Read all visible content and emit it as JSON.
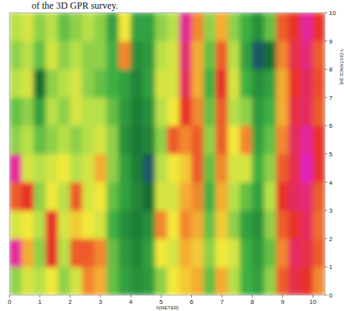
{
  "chart_data": {
    "type": "heatmap",
    "caption": "of the 3D GPR survey.",
    "x_label": "X[METER]",
    "y_label": "Y-DISTANCE [M]",
    "xlim": [
      0,
      10.4
    ],
    "ylim": [
      0,
      10
    ],
    "xticks": [
      0,
      1,
      2,
      3,
      4,
      5,
      6,
      7,
      8,
      9,
      10
    ],
    "yticks": [
      0,
      1,
      2,
      3,
      4,
      5,
      6,
      7,
      8,
      9,
      10
    ],
    "zlim": [
      0,
      100
    ],
    "x": [
      0.2,
      0.6,
      1.0,
      1.4,
      1.8,
      2.2,
      2.6,
      3.0,
      3.4,
      3.8,
      4.2,
      4.6,
      5.0,
      5.4,
      5.8,
      6.2,
      6.6,
      7.0,
      7.4,
      7.8,
      8.2,
      8.6,
      9.0,
      9.4,
      9.8,
      10.2
    ],
    "y": [
      0.5,
      1.5,
      2.5,
      3.5,
      4.5,
      5.5,
      6.5,
      7.5,
      8.5,
      9.5
    ],
    "values": [
      [
        45,
        55,
        50,
        60,
        45,
        55,
        75,
        70,
        40,
        30,
        25,
        28,
        45,
        60,
        65,
        70,
        40,
        70,
        50,
        35,
        30,
        45,
        80,
        88,
        85,
        75
      ],
      [
        95,
        70,
        45,
        85,
        50,
        80,
        80,
        75,
        40,
        28,
        22,
        30,
        60,
        55,
        70,
        65,
        45,
        60,
        55,
        35,
        28,
        40,
        75,
        90,
        88,
        80
      ],
      [
        55,
        60,
        50,
        85,
        55,
        65,
        60,
        55,
        35,
        25,
        20,
        25,
        75,
        60,
        75,
        70,
        40,
        65,
        45,
        30,
        25,
        45,
        80,
        85,
        90,
        78
      ],
      [
        80,
        85,
        45,
        60,
        50,
        80,
        55,
        60,
        40,
        30,
        22,
        15,
        55,
        55,
        70,
        75,
        35,
        70,
        50,
        40,
        30,
        50,
        85,
        90,
        92,
        80
      ],
      [
        95,
        55,
        50,
        55,
        60,
        50,
        55,
        70,
        45,
        30,
        20,
        10,
        50,
        60,
        65,
        80,
        40,
        75,
        55,
        55,
        35,
        45,
        80,
        88,
        98,
        85
      ],
      [
        45,
        50,
        40,
        45,
        50,
        45,
        50,
        55,
        45,
        25,
        18,
        22,
        45,
        80,
        75,
        80,
        45,
        80,
        60,
        75,
        30,
        40,
        75,
        90,
        95,
        85
      ],
      [
        40,
        45,
        30,
        50,
        45,
        55,
        50,
        50,
        40,
        28,
        20,
        25,
        50,
        60,
        85,
        75,
        40,
        80,
        50,
        45,
        28,
        35,
        70,
        88,
        90,
        80
      ],
      [
        50,
        55,
        15,
        45,
        50,
        55,
        45,
        40,
        35,
        30,
        22,
        30,
        55,
        55,
        90,
        70,
        35,
        85,
        55,
        35,
        25,
        30,
        70,
        85,
        90,
        82
      ],
      [
        45,
        50,
        40,
        55,
        45,
        50,
        45,
        45,
        35,
        75,
        25,
        28,
        50,
        55,
        92,
        70,
        40,
        80,
        50,
        30,
        10,
        15,
        75,
        88,
        92,
        80
      ],
      [
        50,
        55,
        45,
        50,
        40,
        45,
        50,
        45,
        30,
        60,
        30,
        30,
        45,
        50,
        95,
        75,
        45,
        70,
        45,
        35,
        25,
        40,
        80,
        85,
        95,
        85
      ]
    ]
  }
}
